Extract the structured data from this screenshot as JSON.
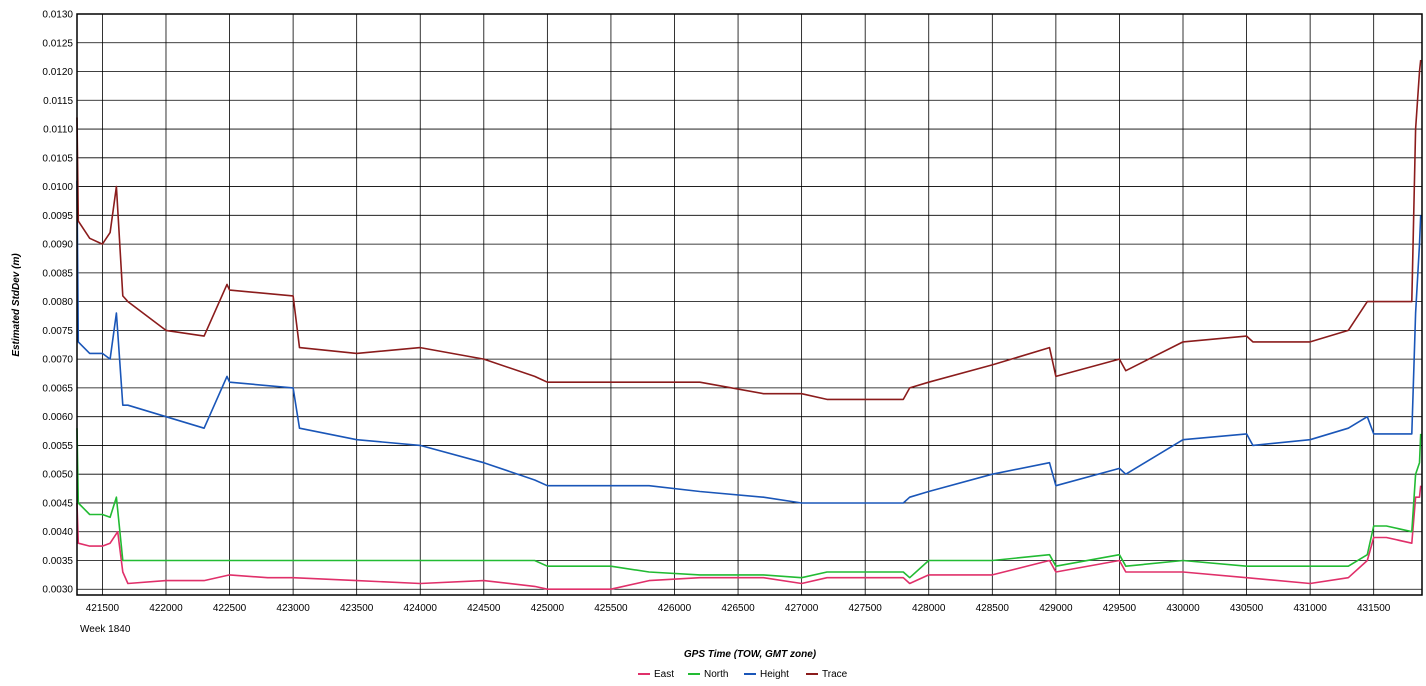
{
  "chart_data": {
    "type": "line",
    "xlabel": "GPS Time (TOW, GMT zone)",
    "ylabel": "Estimated StdDev (m)",
    "x_sublabel": "Week 1840",
    "xlim": [
      421300,
      431880
    ],
    "ylim": [
      0.0029,
      0.013
    ],
    "x_ticks": [
      421500,
      422000,
      422500,
      423000,
      423500,
      424000,
      424500,
      425000,
      425500,
      426000,
      426500,
      427000,
      427500,
      428000,
      428500,
      429000,
      429500,
      430000,
      430500,
      431000,
      431500
    ],
    "x_tick_labels": [
      "421500",
      "422000",
      "422500",
      "423000",
      "423500",
      "424000",
      "424500",
      "425000",
      "425500",
      "426000",
      "426500",
      "427000",
      "427500",
      "428000",
      "428500",
      "429000",
      "429500",
      "430000",
      "430500",
      "431000",
      "431500"
    ],
    "y_ticks": [
      0.003,
      0.0035,
      0.004,
      0.0045,
      0.005,
      0.0055,
      0.006,
      0.0065,
      0.007,
      0.0075,
      0.008,
      0.0085,
      0.009,
      0.0095,
      0.01,
      0.0105,
      0.011,
      0.0115,
      0.012,
      0.0125,
      0.013
    ],
    "y_tick_labels": [
      "0.0030",
      "0.0035",
      "0.0040",
      "0.0045",
      "0.0050",
      "0.0055",
      "0.0060",
      "0.0065",
      "0.0070",
      "0.0075",
      "0.0080",
      "0.0085",
      "0.0090",
      "0.0095",
      "0.0100",
      "0.0105",
      "0.0110",
      "0.0115",
      "0.0120",
      "0.0125",
      "0.0130"
    ],
    "grid": true,
    "legend_position": "bottom-center",
    "series": [
      {
        "name": "East",
        "color": "#e0306a",
        "points": [
          [
            421300,
            0.0045
          ],
          [
            421310,
            0.0038
          ],
          [
            421400,
            0.00375
          ],
          [
            421500,
            0.00375
          ],
          [
            421560,
            0.0038
          ],
          [
            421620,
            0.004
          ],
          [
            421660,
            0.0033
          ],
          [
            421700,
            0.0031
          ],
          [
            422000,
            0.00315
          ],
          [
            422300,
            0.00315
          ],
          [
            422500,
            0.00325
          ],
          [
            422800,
            0.0032
          ],
          [
            423000,
            0.0032
          ],
          [
            423500,
            0.00315
          ],
          [
            424000,
            0.0031
          ],
          [
            424500,
            0.00315
          ],
          [
            424900,
            0.00305
          ],
          [
            425000,
            0.003
          ],
          [
            425500,
            0.003
          ],
          [
            425800,
            0.00315
          ],
          [
            426200,
            0.0032
          ],
          [
            426700,
            0.0032
          ],
          [
            427000,
            0.0031
          ],
          [
            427200,
            0.0032
          ],
          [
            427800,
            0.0032
          ],
          [
            427850,
            0.0031
          ],
          [
            428000,
            0.00325
          ],
          [
            428500,
            0.00325
          ],
          [
            428950,
            0.0035
          ],
          [
            429000,
            0.0033
          ],
          [
            429500,
            0.0035
          ],
          [
            429550,
            0.0033
          ],
          [
            430000,
            0.0033
          ],
          [
            430500,
            0.0032
          ],
          [
            431000,
            0.0031
          ],
          [
            431300,
            0.0032
          ],
          [
            431450,
            0.0035
          ],
          [
            431500,
            0.0039
          ],
          [
            431600,
            0.0039
          ],
          [
            431800,
            0.0038
          ],
          [
            431830,
            0.0046
          ],
          [
            431860,
            0.0046
          ],
          [
            431870,
            0.0048
          ]
        ]
      },
      {
        "name": "North",
        "color": "#22bb33",
        "points": [
          [
            421300,
            0.0058
          ],
          [
            421310,
            0.0045
          ],
          [
            421400,
            0.0043
          ],
          [
            421500,
            0.0043
          ],
          [
            421560,
            0.00425
          ],
          [
            421610,
            0.0046
          ],
          [
            421660,
            0.0035
          ],
          [
            421700,
            0.0035
          ],
          [
            422000,
            0.0035
          ],
          [
            422500,
            0.0035
          ],
          [
            423000,
            0.0035
          ],
          [
            423500,
            0.0035
          ],
          [
            424000,
            0.0035
          ],
          [
            424500,
            0.0035
          ],
          [
            424900,
            0.0035
          ],
          [
            425000,
            0.0034
          ],
          [
            425500,
            0.0034
          ],
          [
            425800,
            0.0033
          ],
          [
            426200,
            0.00325
          ],
          [
            426700,
            0.00325
          ],
          [
            427000,
            0.0032
          ],
          [
            427200,
            0.0033
          ],
          [
            427800,
            0.0033
          ],
          [
            427850,
            0.0032
          ],
          [
            428000,
            0.0035
          ],
          [
            428500,
            0.0035
          ],
          [
            428950,
            0.0036
          ],
          [
            429000,
            0.0034
          ],
          [
            429500,
            0.0036
          ],
          [
            429550,
            0.0034
          ],
          [
            430000,
            0.0035
          ],
          [
            430500,
            0.0034
          ],
          [
            431000,
            0.0034
          ],
          [
            431300,
            0.0034
          ],
          [
            431450,
            0.0036
          ],
          [
            431500,
            0.0041
          ],
          [
            431600,
            0.0041
          ],
          [
            431800,
            0.004
          ],
          [
            431830,
            0.005
          ],
          [
            431860,
            0.0052
          ],
          [
            431870,
            0.0057
          ]
        ]
      },
      {
        "name": "Height",
        "color": "#1a56b8",
        "points": [
          [
            421300,
            0.0101
          ],
          [
            421310,
            0.0073
          ],
          [
            421400,
            0.0071
          ],
          [
            421500,
            0.0071
          ],
          [
            421560,
            0.007
          ],
          [
            421610,
            0.0078
          ],
          [
            421660,
            0.0062
          ],
          [
            421700,
            0.0062
          ],
          [
            422000,
            0.006
          ],
          [
            422300,
            0.0058
          ],
          [
            422480,
            0.0067
          ],
          [
            422500,
            0.0066
          ],
          [
            423000,
            0.0065
          ],
          [
            423050,
            0.0058
          ],
          [
            423500,
            0.0056
          ],
          [
            424000,
            0.0055
          ],
          [
            424500,
            0.0052
          ],
          [
            424900,
            0.0049
          ],
          [
            425000,
            0.0048
          ],
          [
            425500,
            0.0048
          ],
          [
            425800,
            0.0048
          ],
          [
            426200,
            0.0047
          ],
          [
            426700,
            0.0046
          ],
          [
            427000,
            0.0045
          ],
          [
            427200,
            0.0045
          ],
          [
            427800,
            0.0045
          ],
          [
            427850,
            0.0046
          ],
          [
            428000,
            0.0047
          ],
          [
            428500,
            0.005
          ],
          [
            428950,
            0.0052
          ],
          [
            429000,
            0.0048
          ],
          [
            429500,
            0.0051
          ],
          [
            429550,
            0.005
          ],
          [
            430000,
            0.0056
          ],
          [
            430500,
            0.0057
          ],
          [
            430550,
            0.0055
          ],
          [
            431000,
            0.0056
          ],
          [
            431300,
            0.0058
          ],
          [
            431450,
            0.006
          ],
          [
            431500,
            0.0057
          ],
          [
            431800,
            0.0057
          ],
          [
            431830,
            0.0078
          ],
          [
            431860,
            0.009
          ],
          [
            431870,
            0.0095
          ]
        ]
      },
      {
        "name": "Trace",
        "color": "#8b1c1c",
        "points": [
          [
            421300,
            0.0112
          ],
          [
            421310,
            0.0094
          ],
          [
            421400,
            0.0091
          ],
          [
            421500,
            0.009
          ],
          [
            421560,
            0.0092
          ],
          [
            421610,
            0.01
          ],
          [
            421660,
            0.0081
          ],
          [
            421700,
            0.008
          ],
          [
            422000,
            0.0075
          ],
          [
            422300,
            0.0074
          ],
          [
            422480,
            0.0083
          ],
          [
            422500,
            0.0082
          ],
          [
            423000,
            0.0081
          ],
          [
            423050,
            0.0072
          ],
          [
            423500,
            0.0071
          ],
          [
            424000,
            0.0072
          ],
          [
            424500,
            0.007
          ],
          [
            424900,
            0.0067
          ],
          [
            425000,
            0.0066
          ],
          [
            425500,
            0.0066
          ],
          [
            425800,
            0.0066
          ],
          [
            426200,
            0.0066
          ],
          [
            426700,
            0.0064
          ],
          [
            427000,
            0.0064
          ],
          [
            427200,
            0.0063
          ],
          [
            427800,
            0.0063
          ],
          [
            427850,
            0.0065
          ],
          [
            428000,
            0.0066
          ],
          [
            428500,
            0.0069
          ],
          [
            428950,
            0.0072
          ],
          [
            429000,
            0.0067
          ],
          [
            429500,
            0.007
          ],
          [
            429550,
            0.0068
          ],
          [
            430000,
            0.0073
          ],
          [
            430500,
            0.0074
          ],
          [
            430550,
            0.0073
          ],
          [
            431000,
            0.0073
          ],
          [
            431300,
            0.0075
          ],
          [
            431450,
            0.008
          ],
          [
            431500,
            0.008
          ],
          [
            431800,
            0.008
          ],
          [
            431830,
            0.011
          ],
          [
            431860,
            0.012
          ],
          [
            431870,
            0.0122
          ]
        ]
      }
    ]
  }
}
